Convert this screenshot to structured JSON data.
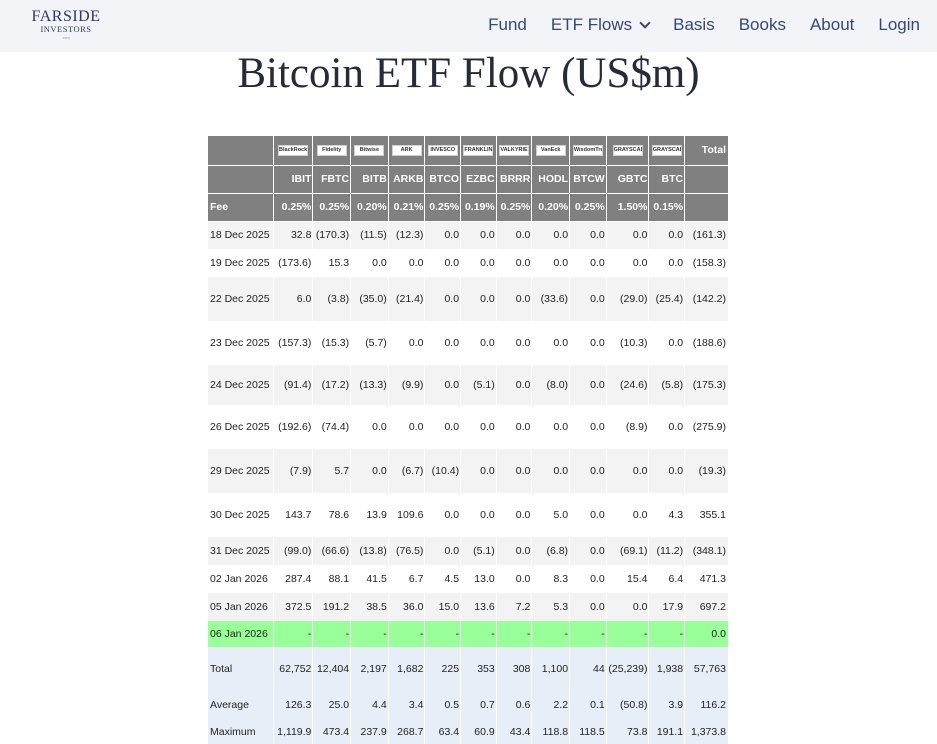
{
  "brand": {
    "name": "FARSIDE",
    "sub": "INVESTORS"
  },
  "nav": [
    {
      "label": "Fund"
    },
    {
      "label": "ETF Flows",
      "dropdown": true
    },
    {
      "label": "Basis"
    },
    {
      "label": "Books"
    },
    {
      "label": "About"
    },
    {
      "label": "Login"
    }
  ],
  "title": "Bitcoin ETF Flow (US$m)",
  "table": {
    "logos": [
      "BlackRock",
      "Fidelity",
      "Bitwise",
      "ARK",
      "INVESCO",
      "FRANKLIN TEMPLETON",
      "VALKYRIE",
      "VanEck",
      "WisdomTree",
      "GRAYSCALE",
      "GRAYSCALE"
    ],
    "total_header": "Total",
    "tickers": [
      "IBIT",
      "FBTC",
      "BITB",
      "ARKB",
      "BTCO",
      "EZBC",
      "BRRR",
      "HODL",
      "BTCW",
      "GBTC",
      "BTC"
    ],
    "fee_label": "Fee",
    "fees": [
      "0.25%",
      "0.25%",
      "0.20%",
      "0.21%",
      "0.25%",
      "0.19%",
      "0.25%",
      "0.20%",
      "0.25%",
      "1.50%",
      "0.15%"
    ],
    "rows": [
      {
        "date": "18 Dec 2025",
        "values": [
          "32.8",
          "(170.3)",
          "(11.5)",
          "(12.3)",
          "0.0",
          "0.0",
          "0.0",
          "0.0",
          "0.0",
          "0.0",
          "0.0"
        ],
        "total": "(161.3)"
      },
      {
        "date": "19 Dec 2025",
        "values": [
          "(173.6)",
          "15.3",
          "0.0",
          "0.0",
          "0.0",
          "0.0",
          "0.0",
          "0.0",
          "0.0",
          "0.0",
          "0.0"
        ],
        "total": "(158.3)"
      },
      {
        "date": "22 Dec 2025",
        "values": [
          "6.0",
          "(3.8)",
          "(35.0)",
          "(21.4)",
          "0.0",
          "0.0",
          "0.0",
          "(33.6)",
          "0.0",
          "(29.0)",
          "(25.4)"
        ],
        "total": "(142.2)"
      },
      {
        "date": "23 Dec 2025",
        "values": [
          "(157.3)",
          "(15.3)",
          "(5.7)",
          "0.0",
          "0.0",
          "0.0",
          "0.0",
          "0.0",
          "0.0",
          "(10.3)",
          "0.0"
        ],
        "total": "(188.6)"
      },
      {
        "date": "24 Dec 2025",
        "values": [
          "(91.4)",
          "(17.2)",
          "(13.3)",
          "(9.9)",
          "0.0",
          "(5.1)",
          "0.0",
          "(8.0)",
          "0.0",
          "(24.6)",
          "(5.8)"
        ],
        "total": "(175.3)"
      },
      {
        "date": "26 Dec 2025",
        "values": [
          "(192.6)",
          "(74.4)",
          "0.0",
          "0.0",
          "0.0",
          "0.0",
          "0.0",
          "0.0",
          "0.0",
          "(8.9)",
          "0.0"
        ],
        "total": "(275.9)"
      },
      {
        "date": "29 Dec 2025",
        "values": [
          "(7.9)",
          "5.7",
          "0.0",
          "(6.7)",
          "(10.4)",
          "0.0",
          "0.0",
          "0.0",
          "0.0",
          "0.0",
          "0.0"
        ],
        "total": "(19.3)"
      },
      {
        "date": "30 Dec 2025",
        "values": [
          "143.7",
          "78.6",
          "13.9",
          "109.6",
          "0.0",
          "0.0",
          "0.0",
          "5.0",
          "0.0",
          "0.0",
          "4.3"
        ],
        "total": "355.1"
      },
      {
        "date": "31 Dec 2025",
        "values": [
          "(99.0)",
          "(66.6)",
          "(13.8)",
          "(76.5)",
          "0.0",
          "(5.1)",
          "0.0",
          "(6.8)",
          "0.0",
          "(69.1)",
          "(11.2)"
        ],
        "total": "(348.1)"
      },
      {
        "date": "02 Jan 2026",
        "values": [
          "287.4",
          "88.1",
          "41.5",
          "6.7",
          "4.5",
          "13.0",
          "0.0",
          "8.3",
          "0.0",
          "15.4",
          "6.4"
        ],
        "total": "471.3"
      },
      {
        "date": "05 Jan 2026",
        "values": [
          "372.5",
          "191.2",
          "38.5",
          "36.0",
          "15.0",
          "13.6",
          "7.2",
          "5.3",
          "0.0",
          "0.0",
          "17.9"
        ],
        "total": "697.2"
      },
      {
        "date": "06 Jan 2026",
        "values": [
          "-",
          "-",
          "-",
          "-",
          "-",
          "-",
          "-",
          "-",
          "-",
          "-",
          "-"
        ],
        "total": "0.0"
      }
    ],
    "summary": [
      {
        "label": "Total",
        "values": [
          "62,752",
          "12,404",
          "2,197",
          "1,682",
          "225",
          "353",
          "308",
          "1,100",
          "44",
          "(25,239)",
          "1,938"
        ],
        "total": "57,763"
      },
      {
        "label": "Average",
        "values": [
          "126.3",
          "25.0",
          "4.4",
          "3.4",
          "0.5",
          "0.7",
          "0.6",
          "2.2",
          "0.1",
          "(50.8)",
          "3.9"
        ],
        "total": "116.2"
      },
      {
        "label": "Maximum",
        "values": [
          "1,119.9",
          "473.4",
          "237.9",
          "268.7",
          "63.4",
          "60.9",
          "43.4",
          "118.8",
          "118.5",
          "73.8",
          "191.1"
        ],
        "total": "1,373.8"
      }
    ],
    "colors": {
      "header_bg": "#808080",
      "negative": "#ff0000",
      "highlight_row": "#99ff99",
      "summary_bg": "#e8eef7"
    }
  }
}
